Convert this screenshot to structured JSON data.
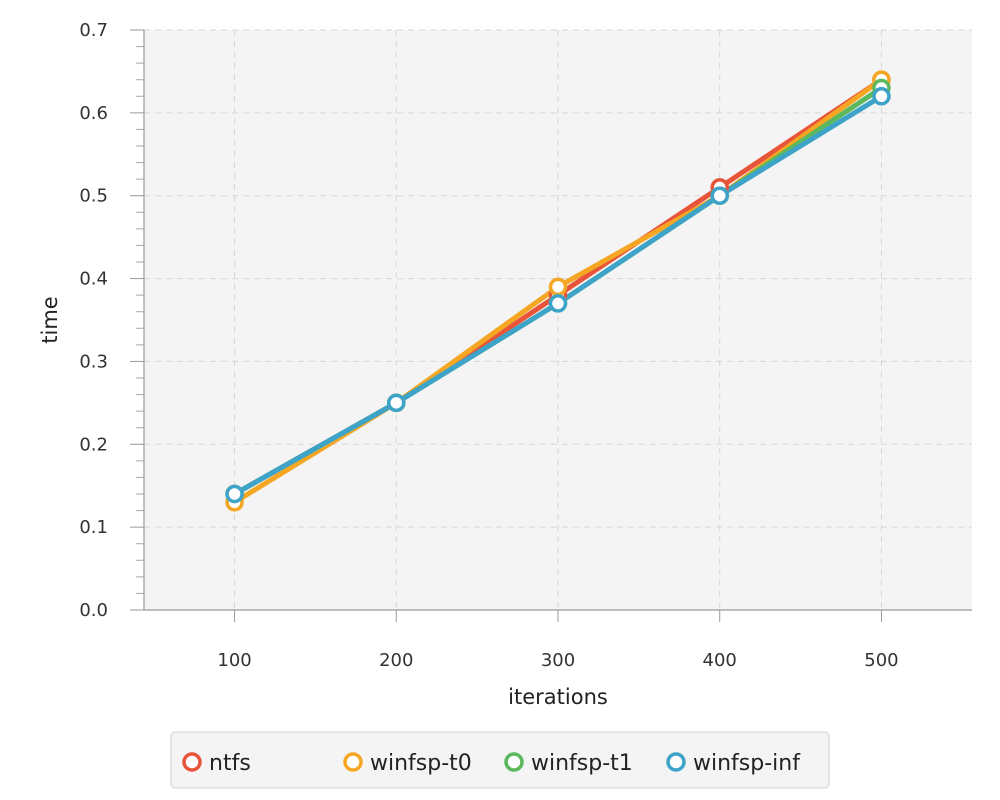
{
  "chart_data": {
    "type": "line",
    "xlabel": "iterations",
    "ylabel": "time",
    "x": [
      100,
      200,
      300,
      400,
      500
    ],
    "xticks": [
      "100",
      "200",
      "300",
      "400",
      "500"
    ],
    "xlim": [
      44,
      556
    ],
    "ylim": [
      0,
      0.7
    ],
    "yticks": [
      "0.0",
      "0.1",
      "0.2",
      "0.3",
      "0.4",
      "0.5",
      "0.6",
      "0.7"
    ],
    "grid": true,
    "legend_position": "bottom",
    "series": [
      {
        "name": "ntfs",
        "color": "#e8543a",
        "values": [
          0.14,
          0.25,
          0.38,
          0.51,
          0.64
        ]
      },
      {
        "name": "winfsp-t0",
        "color": "#f5a623",
        "values": [
          0.13,
          0.25,
          0.39,
          0.5,
          0.64
        ]
      },
      {
        "name": "winfsp-t1",
        "color": "#5cb85c",
        "values": [
          0.14,
          0.25,
          0.37,
          0.5,
          0.63
        ]
      },
      {
        "name": "winfsp-inf",
        "color": "#3ea3c8",
        "values": [
          0.14,
          0.25,
          0.37,
          0.5,
          0.62
        ]
      }
    ]
  }
}
